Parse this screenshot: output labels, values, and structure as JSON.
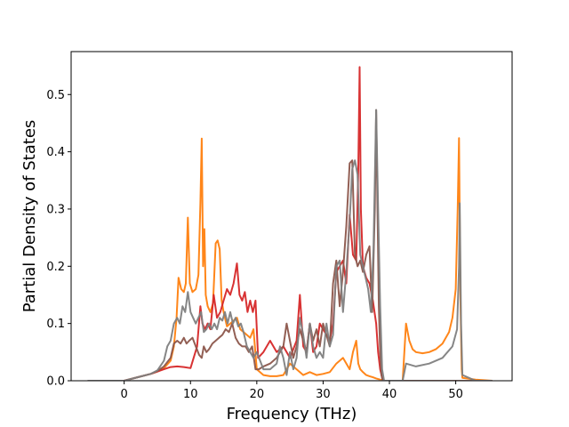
{
  "chart_data": {
    "type": "line",
    "title": "",
    "xlabel": "Frequency (THz)",
    "ylabel": "Partial Density of States",
    "xlim": [
      -8.0,
      58.5
    ],
    "ylim": [
      0.0,
      0.575
    ],
    "xticks": [
      0,
      10,
      20,
      30,
      40,
      50
    ],
    "yticks": [
      0.0,
      0.1,
      0.2,
      0.3,
      0.4,
      0.5
    ],
    "xtick_labels": [
      "0",
      "10",
      "20",
      "30",
      "40",
      "50"
    ],
    "ytick_labels": [
      "0.0",
      "0.1",
      "0.2",
      "0.3",
      "0.4",
      "0.5"
    ],
    "grid": false,
    "legend": null,
    "series": [
      {
        "color": "#ff7f0e",
        "x": [
          -5.5,
          0,
          2,
          4,
          5,
          6,
          7,
          7.5,
          7.9,
          8.2,
          8.6,
          9.0,
          9.3,
          9.6,
          9.9,
          10.3,
          10.8,
          11.2,
          11.5,
          11.7,
          11.9,
          12.1,
          12.3,
          12.6,
          13.0,
          13.4,
          13.8,
          14.1,
          14.4,
          14.7,
          15.0,
          15.5,
          16.0,
          16.5,
          17.0,
          17.5,
          18.0,
          18.5,
          19.0,
          19.5,
          20.0,
          21,
          22,
          23,
          24,
          25,
          26,
          27,
          28,
          29,
          30,
          31,
          32,
          33,
          34,
          34.5,
          35,
          35.3,
          35.6,
          36,
          36.5,
          37,
          37.5,
          38.0,
          38.3,
          38.6,
          39,
          40,
          42,
          42.5,
          43,
          43.5,
          44,
          45,
          46,
          47,
          48,
          49,
          49.5,
          50.0,
          50.3,
          50.5,
          50.7,
          50.9,
          51,
          53,
          55.5
        ],
        "y": [
          0,
          0,
          0.006,
          0.012,
          0.016,
          0.022,
          0.035,
          0.06,
          0.11,
          0.18,
          0.16,
          0.155,
          0.17,
          0.285,
          0.17,
          0.155,
          0.16,
          0.185,
          0.31,
          0.423,
          0.2,
          0.265,
          0.15,
          0.13,
          0.12,
          0.135,
          0.24,
          0.245,
          0.23,
          0.14,
          0.12,
          0.095,
          0.1,
          0.105,
          0.11,
          0.09,
          0.085,
          0.08,
          0.075,
          0.09,
          0.02,
          0.01,
          0.008,
          0.008,
          0.01,
          0.03,
          0.02,
          0.01,
          0.015,
          0.01,
          0.012,
          0.015,
          0.03,
          0.04,
          0.02,
          0.05,
          0.07,
          0.03,
          0.02,
          0.015,
          0.01,
          0.008,
          0.006,
          0.004,
          0.003,
          0.002,
          0,
          0,
          0,
          0.1,
          0.07,
          0.055,
          0.05,
          0.048,
          0.05,
          0.055,
          0.065,
          0.085,
          0.11,
          0.16,
          0.3,
          0.424,
          0.15,
          0.02,
          0.005,
          0.002,
          0
        ],
        "width": 2.0
      },
      {
        "color": "#d62728",
        "x": [
          -5.5,
          0,
          2,
          4,
          5,
          6,
          7,
          8,
          9,
          10,
          11,
          11.5,
          11.8,
          12.2,
          12.6,
          13.0,
          13.5,
          14.0,
          14.5,
          15.0,
          15.5,
          16.0,
          16.5,
          17.0,
          17.4,
          17.8,
          18.2,
          18.6,
          19.0,
          19.4,
          19.8,
          20.2,
          21,
          22,
          23,
          24,
          25,
          26,
          26.5,
          27,
          27.5,
          28,
          28.5,
          29,
          29.5,
          30,
          30.5,
          31,
          31.5,
          32,
          32.5,
          33,
          33.5,
          34,
          34.5,
          35,
          35.3,
          35.5,
          35.7,
          36.0,
          36.5,
          37,
          37.5,
          38.0,
          38.3,
          38.6,
          39,
          41,
          44,
          50,
          55.5
        ],
        "y": [
          0,
          0,
          0.006,
          0.012,
          0.016,
          0.02,
          0.024,
          0.025,
          0.024,
          0.022,
          0.06,
          0.13,
          0.1,
          0.09,
          0.1,
          0.09,
          0.15,
          0.11,
          0.12,
          0.14,
          0.16,
          0.15,
          0.17,
          0.205,
          0.15,
          0.14,
          0.155,
          0.12,
          0.14,
          0.12,
          0.14,
          0.04,
          0.05,
          0.07,
          0.05,
          0.06,
          0.04,
          0.07,
          0.15,
          0.06,
          0.05,
          0.1,
          0.05,
          0.06,
          0.1,
          0.09,
          0.08,
          0.07,
          0.1,
          0.19,
          0.2,
          0.21,
          0.17,
          0.29,
          0.22,
          0.21,
          0.37,
          0.548,
          0.3,
          0.2,
          0.18,
          0.17,
          0.14,
          0.1,
          0.05,
          0.02,
          0,
          0,
          0,
          0,
          0
        ],
        "width": 2.0
      },
      {
        "color": "#8c564b",
        "x": [
          -5.5,
          0,
          2,
          4,
          5,
          6,
          7,
          7.5,
          8,
          8.5,
          9.0,
          9.4,
          9.8,
          10.3,
          10.8,
          11.3,
          11.7,
          12.0,
          12.4,
          12.8,
          13.3,
          13.8,
          14.3,
          14.8,
          15.3,
          15.8,
          16.3,
          16.8,
          17.3,
          17.8,
          18.3,
          18.8,
          19.3,
          19.8,
          20.3,
          21,
          22,
          23,
          24,
          24.5,
          25,
          25.5,
          26,
          26.5,
          27,
          27.5,
          28,
          28.5,
          29,
          29.5,
          30,
          30.5,
          31,
          31.5,
          32,
          32.5,
          33,
          33.5,
          34.0,
          34.4,
          34.8,
          35.2,
          35.6,
          36.0,
          36.5,
          37.0,
          37.4,
          37.8,
          38.0,
          38.2,
          38.4,
          38.6,
          38.8,
          39,
          41,
          44,
          50,
          55.5
        ],
        "y": [
          0,
          0,
          0.006,
          0.012,
          0.017,
          0.025,
          0.04,
          0.065,
          0.07,
          0.065,
          0.075,
          0.065,
          0.07,
          0.075,
          0.06,
          0.045,
          0.04,
          0.06,
          0.05,
          0.055,
          0.065,
          0.07,
          0.075,
          0.08,
          0.09,
          0.085,
          0.1,
          0.075,
          0.065,
          0.06,
          0.06,
          0.05,
          0.06,
          0.02,
          0.02,
          0.025,
          0.03,
          0.04,
          0.06,
          0.1,
          0.07,
          0.04,
          0.06,
          0.09,
          0.07,
          0.05,
          0.1,
          0.07,
          0.09,
          0.06,
          0.1,
          0.08,
          0.06,
          0.17,
          0.21,
          0.13,
          0.19,
          0.27,
          0.38,
          0.385,
          0.22,
          0.2,
          0.21,
          0.19,
          0.22,
          0.235,
          0.12,
          0.3,
          0.473,
          0.3,
          0.13,
          0.05,
          0.01,
          0,
          0,
          0,
          0,
          0
        ],
        "width": 2.0
      },
      {
        "color": "#7f7f7f",
        "x": [
          -5.5,
          0,
          2,
          4,
          5,
          6,
          6.5,
          7,
          7.5,
          8.0,
          8.4,
          8.8,
          9.2,
          9.6,
          10.0,
          10.4,
          10.8,
          11.2,
          11.6,
          12.0,
          12.4,
          12.8,
          13.2,
          13.6,
          14.0,
          14.4,
          14.8,
          15.2,
          15.6,
          16.0,
          16.4,
          16.8,
          17.2,
          17.6,
          18.0,
          18.5,
          19.0,
          19.5,
          20.0,
          21,
          22,
          23,
          23.5,
          24,
          24.5,
          25,
          25.5,
          26,
          26.5,
          27,
          27.5,
          28,
          28.5,
          29,
          29.5,
          30,
          30.5,
          31,
          31.5,
          32,
          32.5,
          33,
          33.5,
          34.0,
          34.4,
          34.8,
          35.2,
          35.6,
          36.0,
          36.4,
          36.8,
          37.2,
          37.6,
          38.0,
          38.3,
          38.6,
          38.9,
          39.2,
          42,
          42.5,
          44,
          46,
          48,
          49.5,
          50.2,
          50.5,
          50.6,
          50.8,
          51,
          53,
          55.5
        ],
        "y": [
          0,
          0,
          0.006,
          0.012,
          0.018,
          0.035,
          0.06,
          0.07,
          0.1,
          0.11,
          0.1,
          0.13,
          0.12,
          0.155,
          0.12,
          0.11,
          0.1,
          0.11,
          0.12,
          0.085,
          0.09,
          0.1,
          0.09,
          0.1,
          0.09,
          0.11,
          0.105,
          0.12,
          0.1,
          0.12,
          0.1,
          0.11,
          0.095,
          0.1,
          0.085,
          0.06,
          0.05,
          0.04,
          0.05,
          0.02,
          0.02,
          0.03,
          0.06,
          0.04,
          0.01,
          0.05,
          0.02,
          0.04,
          0.11,
          0.08,
          0.04,
          0.1,
          0.06,
          0.04,
          0.05,
          0.04,
          0.1,
          0.06,
          0.08,
          0.2,
          0.21,
          0.12,
          0.19,
          0.28,
          0.37,
          0.385,
          0.36,
          0.22,
          0.2,
          0.18,
          0.16,
          0.12,
          0.23,
          0.473,
          0.3,
          0.13,
          0.02,
          0,
          0,
          0.03,
          0.025,
          0.03,
          0.04,
          0.06,
          0.09,
          0.2,
          0.31,
          0.1,
          0.01,
          0,
          0
        ],
        "width": 2.0
      },
      {
        "color": "#bcb8be",
        "x": [
          -5.5,
          0,
          5,
          10,
          20,
          30,
          40,
          50,
          55.5
        ],
        "y": [
          0,
          0,
          0,
          0,
          0,
          0,
          0,
          0,
          0
        ],
        "width": 1.5
      }
    ]
  }
}
